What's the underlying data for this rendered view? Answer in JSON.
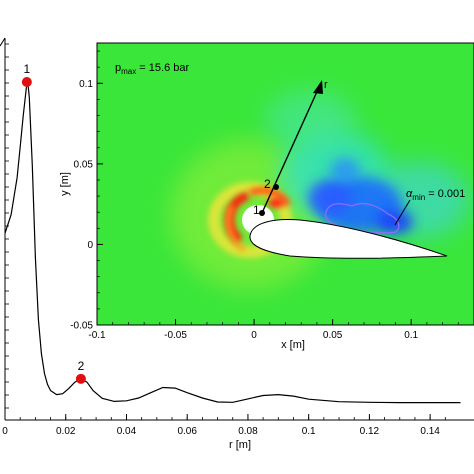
{
  "chart_data": [
    {
      "type": "line",
      "xlabel": "r [m]",
      "xlim": [
        0,
        0.15
      ],
      "x_ticks": [
        "0",
        "0.02",
        "0.04",
        "0.06",
        "0.08",
        "0.1",
        "0.12",
        "0.14"
      ],
      "series": [
        {
          "x": [
            0,
            0.002,
            0.004,
            0.005,
            0.006,
            0.007,
            0.0075,
            0.008,
            0.009,
            0.01,
            0.011,
            0.012,
            0.013,
            0.014,
            0.015,
            0.017,
            0.019,
            0.021,
            0.023,
            0.025,
            0.027,
            0.029,
            0.032,
            0.036,
            0.04,
            0.044,
            0.048,
            0.052,
            0.056,
            0.06,
            0.065,
            0.07,
            0.075,
            0.08,
            0.085,
            0.09,
            0.095,
            0.1,
            0.11,
            0.12,
            0.13,
            0.14,
            0.15
          ],
          "y": [
            0.56,
            0.62,
            0.74,
            0.84,
            0.94,
            1.03,
            1.05,
            1.0,
            0.78,
            0.48,
            0.28,
            0.17,
            0.105,
            0.07,
            0.05,
            0.037,
            0.04,
            0.057,
            0.077,
            0.088,
            0.077,
            0.05,
            0.025,
            0.015,
            0.017,
            0.026,
            0.043,
            0.06,
            0.058,
            0.043,
            0.026,
            0.013,
            0.012,
            0.023,
            0.034,
            0.037,
            0.032,
            0.022,
            0.014,
            0.012,
            0.011,
            0.011,
            0.011
          ]
        }
      ],
      "markers": [
        {
          "label": "1",
          "x": 0.0072,
          "y": 1.05
        },
        {
          "label": "2",
          "x": 0.025,
          "y": 0.088
        }
      ]
    },
    {
      "type": "heatmap",
      "xlabel": "x [m]",
      "ylabel": "y [m]",
      "xlim": [
        -0.1,
        0.14
      ],
      "ylim": [
        -0.05,
        0.125
      ],
      "x_ticks": [
        "-0.1",
        "-0.05",
        "0",
        "0.05",
        "0.1"
      ],
      "y_ticks": [
        "-0.05",
        "0",
        "0.05",
        "0.1"
      ],
      "annotations": {
        "p_symbol": "p",
        "p_sub": "max",
        "p_value": " = 15.6 bar",
        "alpha_symbol": "α",
        "alpha_sub": "min",
        "alpha_value": " = 0.001",
        "r_axis": "r",
        "pt1": "1",
        "pt2": "2"
      },
      "colors": {
        "background": "#3ae63a",
        "low": "#1030ff",
        "high": "#ff1a1a"
      }
    }
  ]
}
